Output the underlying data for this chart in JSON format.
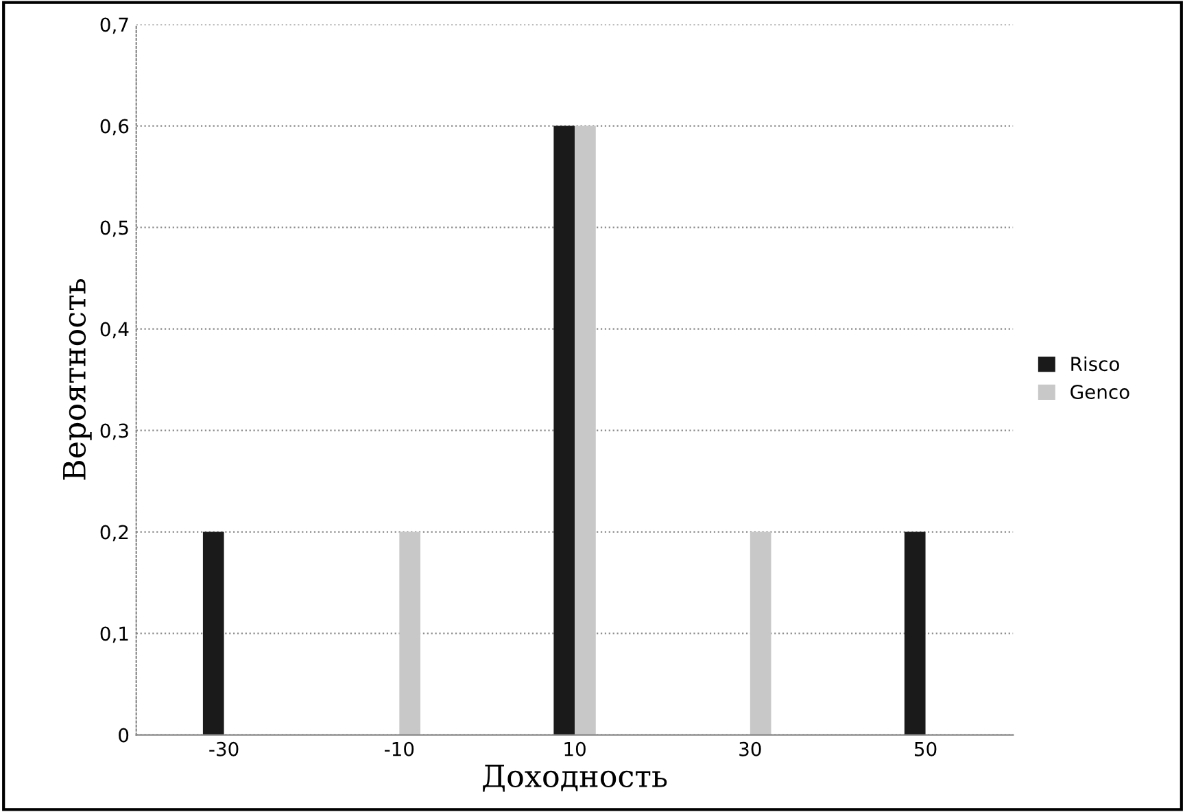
{
  "chart_data": {
    "type": "bar",
    "xlabel": "Доходность",
    "ylabel": "Вероятность",
    "categories": [
      "-30",
      "-10",
      "10",
      "30",
      "50"
    ],
    "series": [
      {
        "name": "Risco",
        "color": "#1a1a1a",
        "values": [
          0.2,
          0,
          0.6,
          0,
          0.2
        ]
      },
      {
        "name": "Genco",
        "color": "#c8c8c8",
        "values": [
          0,
          0.2,
          0.6,
          0.2,
          0
        ]
      }
    ],
    "ylim": [
      0,
      0.7
    ],
    "yticks": [
      0,
      {
        "value": 0.1,
        "label": "0,1"
      },
      {
        "value": 0.2,
        "label": "0,2"
      },
      {
        "value": 0.3,
        "label": "0,3"
      },
      {
        "value": 0.4,
        "label": "0,4"
      },
      {
        "value": 0.5,
        "label": "0,5"
      },
      {
        "value": 0.6,
        "label": "0,6"
      },
      {
        "value": 0.7,
        "label": "0,7"
      }
    ],
    "grid": "y",
    "legend": "right"
  }
}
